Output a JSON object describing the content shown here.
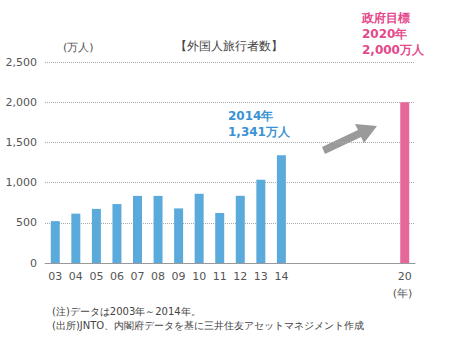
{
  "chart_data": {
    "type": "bar",
    "title": "【外国人旅行者数】",
    "y_label": "(万人)",
    "x_label": "(年)",
    "categories": [
      "03",
      "04",
      "05",
      "06",
      "07",
      "08",
      "09",
      "10",
      "11",
      "12",
      "13",
      "14",
      null,
      null,
      null,
      null,
      null,
      "20"
    ],
    "values": [
      521,
      614,
      673,
      733,
      835,
      835,
      679,
      861,
      622,
      836,
      1036,
      1341,
      null,
      null,
      null,
      null,
      null,
      2000
    ],
    "colors": [
      "#5aabdc",
      "#5aabdc",
      "#5aabdc",
      "#5aabdc",
      "#5aabdc",
      "#5aabdc",
      "#5aabdc",
      "#5aabdc",
      "#5aabdc",
      "#5aabdc",
      "#5aabdc",
      "#5aabdc",
      null,
      null,
      null,
      null,
      null,
      "#e8679b"
    ],
    "ylim": [
      0,
      2500
    ],
    "yticks": [
      0,
      500,
      {
        "value": 1000,
        "label": "1,000"
      },
      {
        "value": 1500,
        "label": "1,500"
      },
      {
        "value": 2000,
        "label": "2,000"
      },
      {
        "value": 2500,
        "label": "2,500"
      }
    ],
    "grid": true,
    "annotations": [
      "2014年\n1,341万人",
      "政府目標\n2020年\n2,000万人"
    ],
    "notes": [
      "(注)データは2003年～2014年。",
      "(出所)JNTO、内閣府データを基に三井住友アセットマネジメント作成"
    ]
  }
}
